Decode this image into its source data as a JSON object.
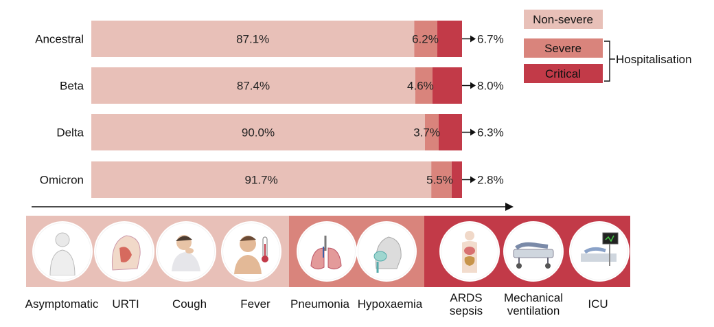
{
  "chart_data": {
    "type": "bar",
    "orientation": "horizontal",
    "stacked": true,
    "categories": [
      "Ancestral",
      "Beta",
      "Delta",
      "Omicron"
    ],
    "series": [
      {
        "name": "Non-severe",
        "color": "#e8c0b8",
        "values": [
          87.1,
          87.4,
          90.0,
          91.7
        ]
      },
      {
        "name": "Severe",
        "color": "#d9847c",
        "values": [
          6.2,
          4.6,
          3.7,
          5.5
        ]
      },
      {
        "name": "Critical",
        "color": "#c23a48",
        "values": [
          6.7,
          8.0,
          6.3,
          2.8
        ]
      }
    ],
    "value_labels": {
      "non_severe": [
        "87.1%",
        "87.4%",
        "90.0%",
        "91.7%"
      ],
      "severe": [
        "6.2%",
        "4.6%",
        "3.7%",
        "5.5%"
      ],
      "critical": [
        "6.7%",
        "8.0%",
        "6.3%",
        "2.8%"
      ]
    },
    "legend": {
      "placement": "top-right",
      "items": [
        "Non-severe",
        "Severe",
        "Critical"
      ],
      "bracket_label": "Hospitalisation"
    }
  },
  "stages": [
    {
      "label": "Asymptomatic",
      "icon": "person-icon",
      "group": "Non-severe"
    },
    {
      "label": "URTI",
      "icon": "head-anatomy-icon",
      "group": "Non-severe"
    },
    {
      "label": "Cough",
      "icon": "coughing-person-icon",
      "group": "Non-severe"
    },
    {
      "label": "Fever",
      "icon": "thermometer-person-icon",
      "group": "Non-severe"
    },
    {
      "label": "Pneumonia",
      "icon": "lungs-icon",
      "group": "Severe"
    },
    {
      "label": "Hypoxaemia",
      "icon": "oxygen-mask-icon",
      "group": "Severe"
    },
    {
      "label": "ARDS\nsepsis",
      "icon": "body-organs-icon",
      "group": "Critical"
    },
    {
      "label": "Mechanical\nventilation",
      "icon": "hospital-bed-icon",
      "group": "Critical"
    },
    {
      "label": "ICU",
      "icon": "icu-icon",
      "group": "Critical"
    }
  ]
}
